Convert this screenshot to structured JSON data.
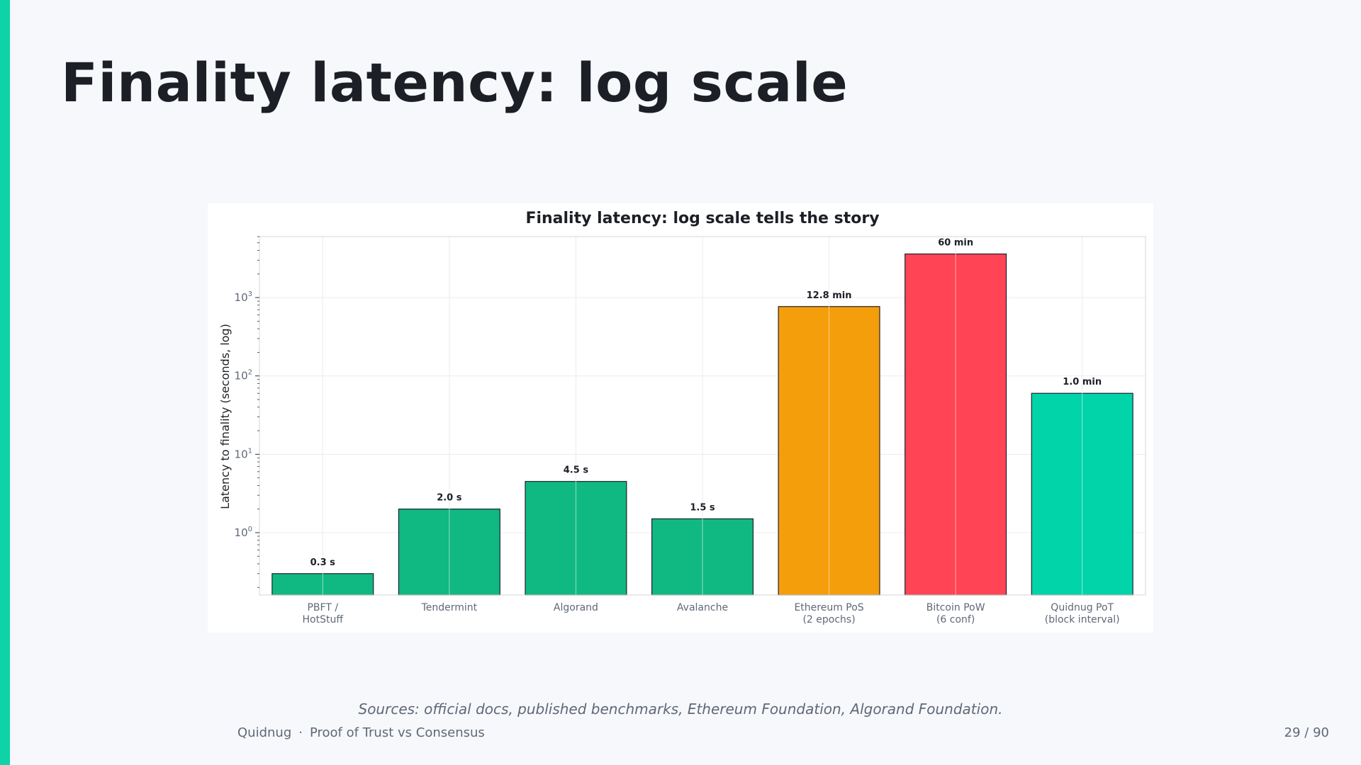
{
  "slide": {
    "title": "Finality latency: log scale",
    "caption": "Sources: official docs, published benchmarks, Ethereum Foundation, Algorand Foundation.",
    "footer_brand": "Quidnug",
    "footer_separator": "·",
    "footer_deck": "Proof of Trust vs Consensus",
    "page_number": "29 / 90",
    "accent_color": "#0fd3a8"
  },
  "chart_data": {
    "type": "bar",
    "title": "Finality latency: log scale tells the story",
    "ylabel": "Latency to finality (seconds, log)",
    "yscale": "log",
    "ylim": [
      0.16,
      6000
    ],
    "grid": true,
    "categories": [
      [
        "PBFT /",
        "HotStuff"
      ],
      [
        "Tendermint"
      ],
      [
        "Algorand"
      ],
      [
        "Avalanche"
      ],
      [
        "Ethereum PoS",
        "(2 epochs)"
      ],
      [
        "Bitcoin PoW",
        "(6 conf)"
      ],
      [
        "Quidnug PoT",
        "(block interval)"
      ]
    ],
    "values": [
      0.3,
      2.0,
      4.5,
      1.5,
      768,
      3600,
      60
    ],
    "value_labels": [
      "0.3 s",
      "2.0 s",
      "4.5 s",
      "1.5 s",
      "12.8 min",
      "60 min",
      "1.0 min"
    ],
    "colors": [
      "#10b981",
      "#10b981",
      "#10b981",
      "#10b981",
      "#f59e0b",
      "#ff4455",
      "#00d4a8"
    ],
    "yticks": [
      {
        "base": "10",
        "exp": "0",
        "value": 1
      },
      {
        "base": "10",
        "exp": "1",
        "value": 10
      },
      {
        "base": "10",
        "exp": "2",
        "value": 100
      },
      {
        "base": "10",
        "exp": "3",
        "value": 1000
      }
    ]
  }
}
